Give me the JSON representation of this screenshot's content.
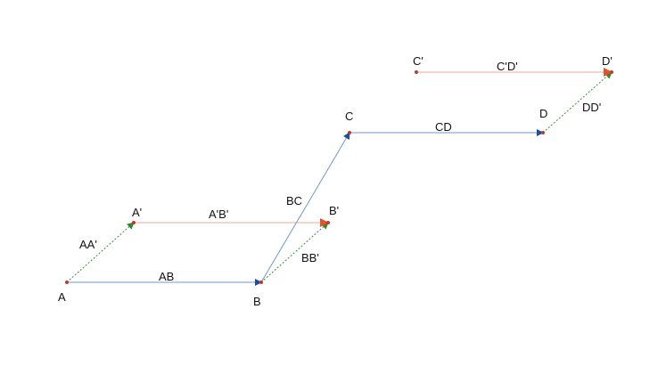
{
  "nodes": [
    {
      "label": "A"
    },
    {
      "label": "B"
    },
    {
      "label": "C"
    },
    {
      "label": "D"
    },
    {
      "label": "A'"
    },
    {
      "label": "B'"
    },
    {
      "label": "C'"
    },
    {
      "label": "D'"
    }
  ],
  "edges": [
    {
      "label": "AB"
    },
    {
      "label": "BC"
    },
    {
      "label": "CD"
    },
    {
      "label": "A'B'"
    },
    {
      "label": "C'D'"
    },
    {
      "label": "AA'"
    },
    {
      "label": "BB'"
    },
    {
      "label": "DD'"
    }
  ]
}
